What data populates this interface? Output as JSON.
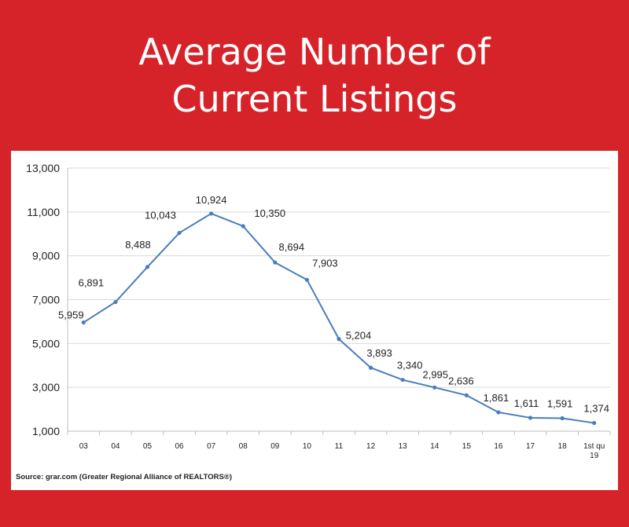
{
  "title_line1": "Average Number of",
  "title_line2": "Current Listings",
  "source": "Source:  grar.com (Greater Regional Alliance of REALTORS®)",
  "colors": {
    "background": "#d62329",
    "line": "#4a7ebb",
    "text": "#ffffff"
  },
  "chart_data": {
    "type": "line",
    "title": "",
    "xlabel": "",
    "ylabel": "",
    "categories": [
      "03",
      "04",
      "05",
      "06",
      "07",
      "08",
      "09",
      "10",
      "11",
      "12",
      "13",
      "14",
      "15",
      "16",
      "17",
      "18",
      "1st qu 19"
    ],
    "values": [
      5959,
      6891,
      8488,
      10043,
      10924,
      10350,
      8694,
      7903,
      5204,
      3893,
      3340,
      2995,
      2636,
      1861,
      1611,
      1591,
      1374
    ],
    "data_labels": [
      "5,959",
      "6,891",
      "8,488",
      "10,043",
      "10,924",
      "10,350",
      "8,694",
      "7,903",
      "5,204",
      "3,893",
      "3,340",
      "2,995",
      "2,636",
      "1,861",
      "1,611",
      "1,591",
      "1,374"
    ],
    "yticks": [
      1000,
      3000,
      5000,
      7000,
      9000,
      11000,
      13000
    ],
    "ytick_labels": [
      "1,000",
      "3,000",
      "5,000",
      "7,000",
      "9,000",
      "11,000",
      "13,000"
    ],
    "ylim": [
      1000,
      13000
    ],
    "grid": "horizontal",
    "legend": "none"
  }
}
